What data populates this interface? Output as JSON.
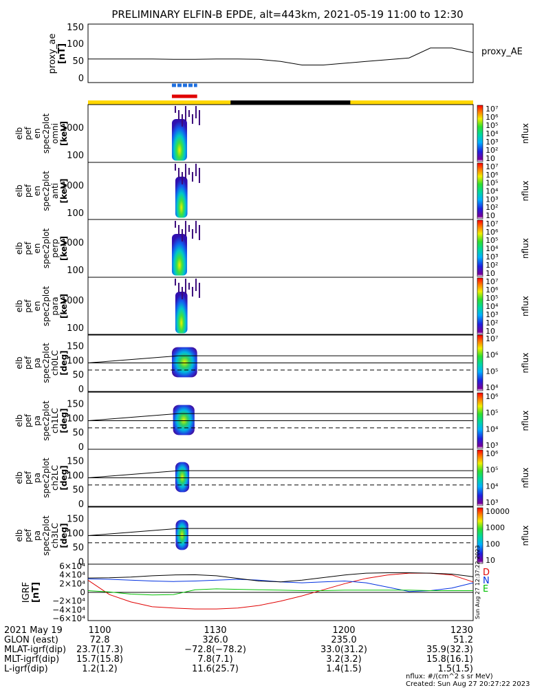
{
  "title": "PRELIMINARY ELFIN-B EPDE, alt=443km, 2021-05-19 11:00 to 12:30",
  "ae_panel": {
    "ylabel_lines": [
      "proxy_ae",
      "[nT]"
    ],
    "yticks": [
      "150",
      "100",
      "50",
      "0"
    ],
    "series_label": "proxy_AE"
  },
  "energy_panels": [
    {
      "ylabel_lines": [
        "elb",
        "pef",
        "en",
        "spec2plot",
        "omni",
        "[keV]"
      ],
      "yticks": [
        "1000",
        "100"
      ]
    },
    {
      "ylabel_lines": [
        "elb",
        "pef",
        "en",
        "spec2plot",
        "anti",
        "[keV]"
      ],
      "yticks": [
        "1000",
        "100"
      ]
    },
    {
      "ylabel_lines": [
        "elb",
        "pef",
        "en",
        "spec2plot",
        "perp",
        "[keV]"
      ],
      "yticks": [
        "1000",
        "100"
      ]
    },
    {
      "ylabel_lines": [
        "elb",
        "pef",
        "en",
        "spec2plot",
        "para",
        "[keV]"
      ],
      "yticks": [
        "1000",
        "100"
      ]
    }
  ],
  "pa_panels": [
    {
      "ylabel_lines": [
        "elb",
        "pef",
        "pa",
        "spec2plot",
        "ch0LC",
        "[deg]"
      ],
      "yticks": [
        "150",
        "100",
        "50",
        "0"
      ]
    },
    {
      "ylabel_lines": [
        "elb",
        "pef",
        "pa",
        "spec2plot",
        "ch1LC",
        "[deg]"
      ],
      "yticks": [
        "150",
        "100",
        "50",
        "0"
      ]
    },
    {
      "ylabel_lines": [
        "elb",
        "pef",
        "pa",
        "spec2plot",
        "ch2LC",
        "[deg]"
      ],
      "yticks": [
        "150",
        "100",
        "50",
        "0"
      ]
    },
    {
      "ylabel_lines": [
        "elb",
        "pef",
        "pa",
        "spec2plot",
        "ch3LC",
        "[deg]"
      ],
      "yticks": [
        "150",
        "100",
        "50",
        "0"
      ]
    }
  ],
  "colorbars": [
    {
      "ticks": [
        "10⁷",
        "10⁶",
        "10⁵",
        "10⁴",
        "10³",
        "10²",
        "10"
      ],
      "label": "nflux"
    },
    {
      "ticks": [
        "10⁷",
        "10⁶",
        "10⁵",
        "10⁴",
        "10³",
        "10²",
        "10"
      ],
      "label": "nflux"
    },
    {
      "ticks": [
        "10⁷",
        "10⁶",
        "10⁵",
        "10⁴",
        "10³",
        "10²",
        "10"
      ],
      "label": "nflux"
    },
    {
      "ticks": [
        "10⁷",
        "10⁶",
        "10⁵",
        "10⁴",
        "10³",
        "10²",
        "10"
      ],
      "label": "nflux"
    },
    {
      "ticks": [
        "10⁷",
        "10⁶",
        "10⁵",
        "10⁴"
      ],
      "label": "nflux"
    },
    {
      "ticks": [
        "10⁶",
        "10⁵",
        "10⁴",
        "10³"
      ],
      "label": "nflux"
    },
    {
      "ticks": [
        "10⁶",
        "10⁵",
        "10⁴",
        "10³"
      ],
      "label": "nflux"
    },
    {
      "ticks": [
        "10000",
        "1000",
        "100",
        "10"
      ],
      "label": "nflux"
    }
  ],
  "field_panel": {
    "ylabel_lines": [
      "IGRF",
      "[nT]"
    ],
    "yticks": [
      "6×10⁴",
      "4×10⁴",
      "2×10⁴",
      "0",
      "−2×10⁴",
      "−4×10⁴",
      "−6×10⁴"
    ],
    "legend": [
      {
        "label": "D",
        "color": "#e00000"
      },
      {
        "label": "N",
        "color": "#0030e0"
      },
      {
        "label": "E",
        "color": "#00c000"
      }
    ],
    "side_note": "Sun Aug 27 12:37:22 2023"
  },
  "time_axis": {
    "row_labels": [
      "2021 May 19",
      "GLON (east)",
      "MLAT-igrf(dip)",
      "MLT-igrf(dip)",
      "L-igrf(dip)"
    ],
    "columns": [
      [
        "1100",
        "72.8",
        "23.7(17.3)",
        "15.7(15.8)",
        "1.2(1.2)"
      ],
      [
        "1130",
        "326.0",
        "−72.8(−78.2)",
        "7.8(7.1)",
        "11.6(25.7)"
      ],
      [
        "1200",
        "235.0",
        "33.0(31.2)",
        "3.2(3.2)",
        "1.4(1.5)"
      ],
      [
        "1230",
        "51.2",
        "35.9(32.3)",
        "15.8(16.1)",
        "1.5(1.5)"
      ]
    ]
  },
  "footer": {
    "units": "nflux: #/(cm^2 s sr MeV)",
    "created": "Created: Sun Aug 27 20:27:22 2023"
  },
  "chart_data": {
    "type": "line",
    "time_range": [
      "2021-05-19 11:00",
      "2021-05-19 12:30"
    ],
    "x_ticks": [
      "1100",
      "1130",
      "1200",
      "1230"
    ],
    "x": [
      0,
      5,
      10,
      15,
      20,
      25,
      30,
      35,
      40,
      45,
      50,
      55,
      60,
      65,
      70,
      75,
      80,
      85,
      90
    ],
    "proxy_ae": {
      "ylim": [
        0,
        150
      ],
      "values": [
        57,
        57,
        57,
        57,
        56,
        56,
        57,
        57,
        56,
        50,
        40,
        40,
        45,
        50,
        55,
        60,
        88,
        88,
        75
      ]
    },
    "igrf": {
      "ylim": [
        -60000,
        60000
      ],
      "series": [
        {
          "name": "D",
          "color": "#e00000",
          "values": [
            28000,
            -5000,
            -22000,
            -33000,
            -36000,
            -38000,
            -38000,
            -36000,
            -30000,
            -20000,
            -8000,
            6000,
            20000,
            32000,
            40000,
            44000,
            44000,
            40000,
            24000
          ]
        },
        {
          "name": "N",
          "color": "#0030e0",
          "values": [
            31000,
            30000,
            28000,
            26000,
            25000,
            26000,
            28000,
            30000,
            28000,
            24000,
            22000,
            24000,
            26000,
            22000,
            12000,
            2000,
            4000,
            10000,
            22000
          ]
        },
        {
          "name": "E",
          "color": "#00c000",
          "values": [
            4000,
            1000,
            -4000,
            -6000,
            -5000,
            6000,
            8000,
            7000,
            6000,
            5000,
            4000,
            4000,
            5000,
            5000,
            5000,
            5000,
            4000,
            4000,
            4000
          ]
        },
        {
          "name": "",
          "color": "#000000",
          "values": [
            33000,
            33500,
            35000,
            38000,
            40000,
            40500,
            38000,
            32000,
            26000,
            24000,
            28000,
            34000,
            40000,
            44000,
            45000,
            45000,
            44000,
            42000,
            36000
          ]
        }
      ]
    },
    "pa_reference_lines": [
      90,
      115,
      65
    ],
    "status_bar": [
      {
        "from": 0,
        "to": 33.3,
        "color": "#ffd700"
      },
      {
        "from": 33.3,
        "to": 61.3,
        "color": "#000000"
      },
      {
        "from": 61.3,
        "to": 90,
        "color": "#ffd700"
      }
    ],
    "event_markers": [
      {
        "from": 19.6,
        "to": 25.5,
        "color": "#1e6fe0",
        "style": "dashed"
      },
      {
        "from": 19.6,
        "to": 25.5,
        "color": "#e00000",
        "style": "solid"
      }
    ]
  }
}
